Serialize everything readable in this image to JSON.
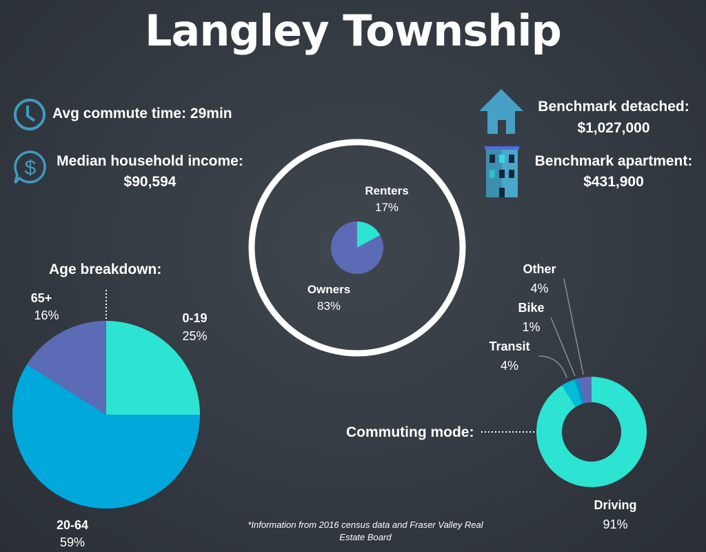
{
  "title": "Langley Township",
  "stats": {
    "commute": "Avg commute time: 29min",
    "income_label": "Median household income:",
    "income_value": "$90,594",
    "detached_label": "Benchmark detached:",
    "detached_value": "$1,027,000",
    "apartment_label": "Benchmark apartment:",
    "apartment_value": "$431,900"
  },
  "colors": {
    "turquoise": "#2de3d2",
    "blue": "#00a8dc",
    "purple": "#5c6bb5",
    "cyan": "#00bcd8",
    "bike": "#0096d6",
    "icon": "#3f9bc0"
  },
  "footnote": "*Information from 2016 census data and Fraser Valley Real Estate Board",
  "chart_data": [
    {
      "type": "pie",
      "title": "Age breakdown:",
      "categories": [
        "0-19",
        "20-64",
        "65+"
      ],
      "values": [
        25,
        59,
        16
      ],
      "labels": [
        "25%",
        "59%",
        "16%"
      ]
    },
    {
      "type": "pie",
      "title": "",
      "categories": [
        "Renters",
        "Owners"
      ],
      "values": [
        17,
        83
      ],
      "labels": [
        "17%",
        "83%"
      ]
    },
    {
      "type": "pie",
      "title": "Commuting mode:",
      "categories": [
        "Driving",
        "Transit",
        "Bike",
        "Other"
      ],
      "values": [
        91,
        4,
        1,
        4
      ],
      "labels": [
        "91%",
        "4%",
        "1%",
        "4%"
      ]
    }
  ]
}
